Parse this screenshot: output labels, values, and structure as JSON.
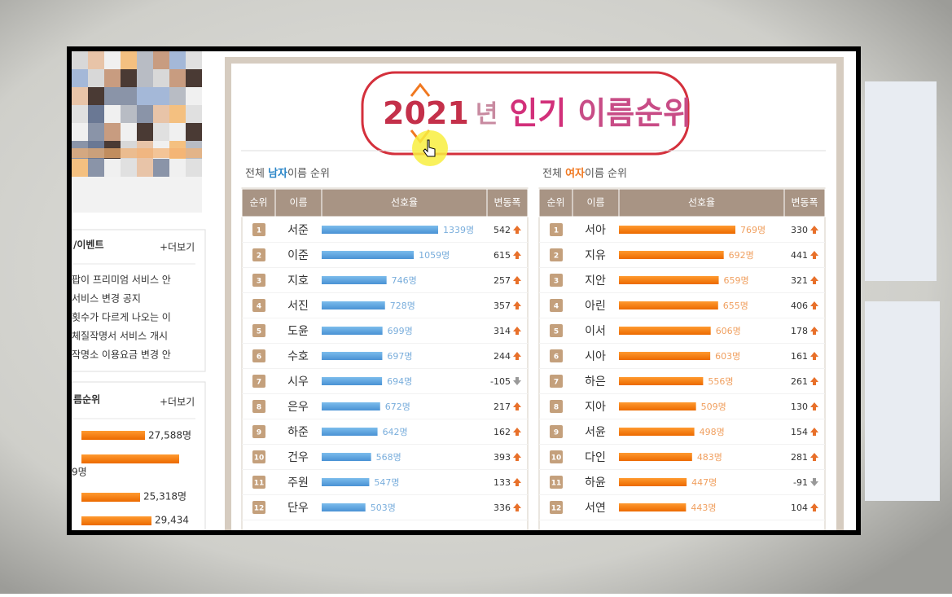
{
  "sidebar": {
    "notice_title": "/이벤트",
    "more": "+더보기",
    "notices": [
      "팝이 프리미엄 서비스 안",
      "서비스 변경 공지",
      "횟수가 다르게 나오는 이",
      "체질작명서 서비스 개시",
      "작명소 이용요금 변경 안"
    ],
    "ranking_title": "름순위",
    "ranking_labels": [
      "27,588명",
      "9명",
      "25,318명",
      "29,434"
    ]
  },
  "title": {
    "year": "2021",
    "nyeon": "년",
    "popular": "인기",
    "rest": "이름순위"
  },
  "columns": [
    "순위",
    "이름",
    "선호율",
    "변동폭"
  ],
  "tables": [
    {
      "heading": [
        "전체 ",
        "남자",
        "이름 순위"
      ],
      "rows": [
        {
          "rank": 1,
          "name": "서준",
          "count": 1339,
          "count_label": "1339명",
          "change": 542
        },
        {
          "rank": 2,
          "name": "이준",
          "count": 1059,
          "count_label": "1059명",
          "change": 615
        },
        {
          "rank": 3,
          "name": "지호",
          "count": 746,
          "count_label": "746명",
          "change": 257
        },
        {
          "rank": 4,
          "name": "서진",
          "count": 728,
          "count_label": "728명",
          "change": 357
        },
        {
          "rank": 5,
          "name": "도윤",
          "count": 699,
          "count_label": "699명",
          "change": 314
        },
        {
          "rank": 6,
          "name": "수호",
          "count": 697,
          "count_label": "697명",
          "change": 244
        },
        {
          "rank": 7,
          "name": "시우",
          "count": 694,
          "count_label": "694명",
          "change": -105
        },
        {
          "rank": 8,
          "name": "은우",
          "count": 672,
          "count_label": "672명",
          "change": 217
        },
        {
          "rank": 9,
          "name": "하준",
          "count": 642,
          "count_label": "642명",
          "change": 162
        },
        {
          "rank": 10,
          "name": "건우",
          "count": 568,
          "count_label": "568명",
          "change": 393
        },
        {
          "rank": 11,
          "name": "주원",
          "count": 547,
          "count_label": "547명",
          "change": 133
        },
        {
          "rank": 12,
          "name": "단우",
          "count": 503,
          "count_label": "503명",
          "change": 336
        }
      ]
    },
    {
      "heading": [
        "전체 ",
        "여자",
        "이름 순위"
      ],
      "rows": [
        {
          "rank": 1,
          "name": "서아",
          "count": 769,
          "count_label": "769명",
          "change": 330
        },
        {
          "rank": 2,
          "name": "지유",
          "count": 692,
          "count_label": "692명",
          "change": 441
        },
        {
          "rank": 3,
          "name": "지안",
          "count": 659,
          "count_label": "659명",
          "change": 321
        },
        {
          "rank": 4,
          "name": "아린",
          "count": 655,
          "count_label": "655명",
          "change": 406
        },
        {
          "rank": 5,
          "name": "이서",
          "count": 606,
          "count_label": "606명",
          "change": 178
        },
        {
          "rank": 6,
          "name": "시아",
          "count": 603,
          "count_label": "603명",
          "change": 161
        },
        {
          "rank": 7,
          "name": "하은",
          "count": 556,
          "count_label": "556명",
          "change": 261
        },
        {
          "rank": 8,
          "name": "지아",
          "count": 509,
          "count_label": "509명",
          "change": 130
        },
        {
          "rank": 9,
          "name": "서윤",
          "count": 498,
          "count_label": "498명",
          "change": 154
        },
        {
          "rank": 10,
          "name": "다인",
          "count": 483,
          "count_label": "483명",
          "change": 281
        },
        {
          "rank": 11,
          "name": "하윤",
          "count": 447,
          "count_label": "447명",
          "change": -91
        },
        {
          "rank": 12,
          "name": "서연",
          "count": 443,
          "count_label": "443명",
          "change": 104
        }
      ]
    }
  ]
}
